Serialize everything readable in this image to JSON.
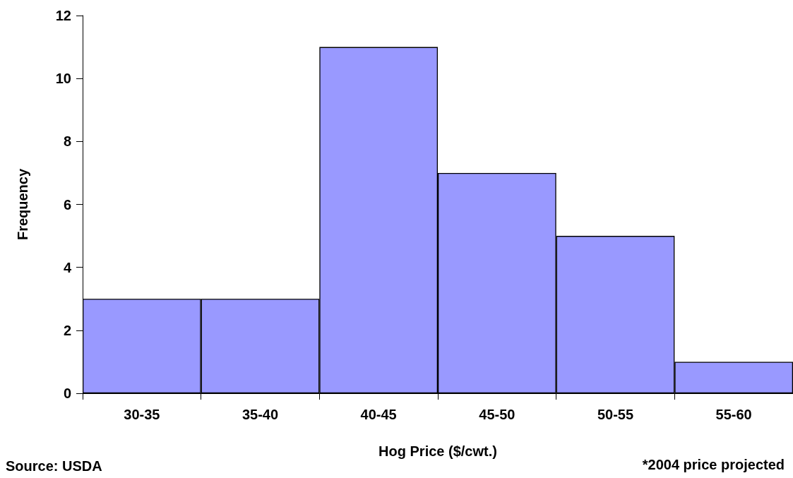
{
  "chart_data": {
    "type": "bar",
    "xlabel": "Hog Price ($/cwt.)",
    "ylabel": "Frequency",
    "categories": [
      "30-35",
      "35-40",
      "40-45",
      "45-50",
      "50-55",
      "55-60"
    ],
    "values": [
      3,
      3,
      11,
      7,
      5,
      1
    ],
    "color": "#9999ff",
    "ylim": [
      0,
      12
    ],
    "yticks": [
      0,
      2,
      4,
      6,
      8,
      10,
      12
    ],
    "grid": false,
    "annotations": [
      "Source: USDA",
      "*2004 price projected"
    ]
  }
}
